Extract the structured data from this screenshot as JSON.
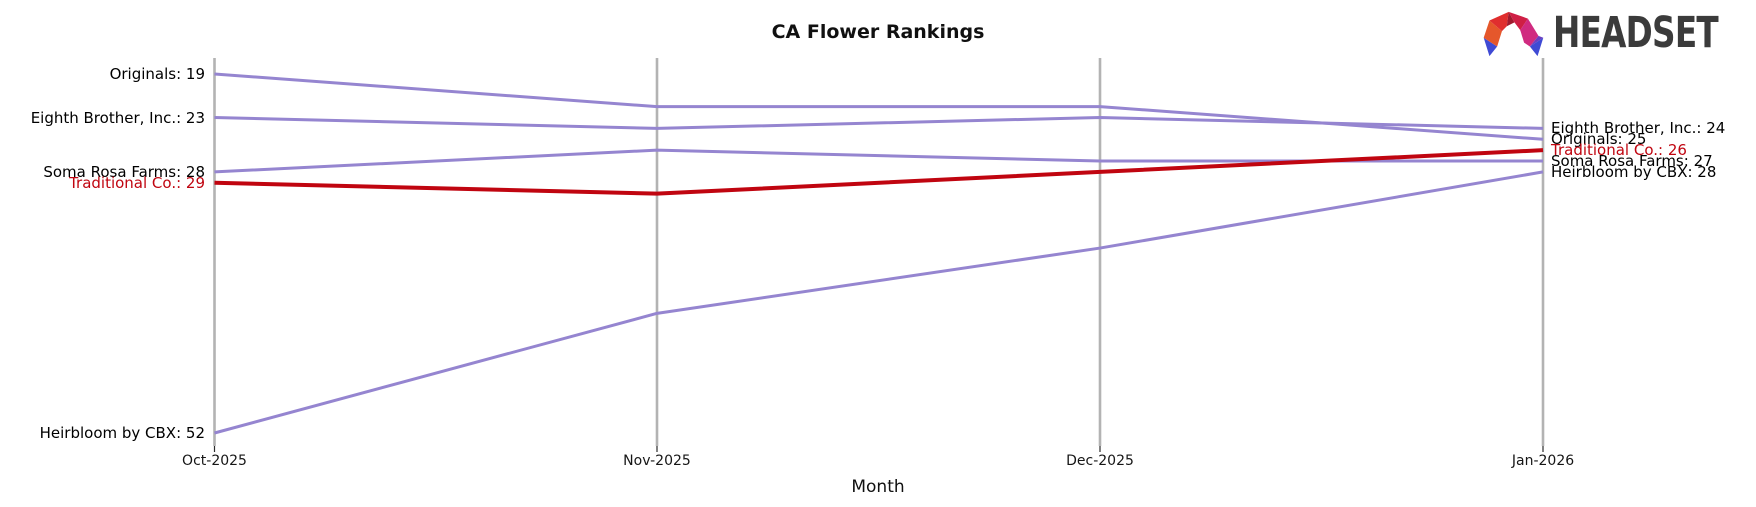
{
  "title": "CA Flower Rankings",
  "xlabel": "Month",
  "logo": {
    "text": "HEADSET"
  },
  "colors": {
    "line_default": "#9585d0",
    "line_emphasis": "#c00510",
    "axis": "#b3b3b3",
    "tick": "#2a2a2a",
    "text": "#101010",
    "label_emphasis": "#c00510"
  },
  "chart_data": {
    "type": "line",
    "variant": "bump-ranking",
    "title": "CA Flower Rankings",
    "xlabel": "Month",
    "x": [
      "Oct-2025",
      "Nov-2025",
      "Dec-2025",
      "Jan-2026"
    ],
    "y_meaning": "rank (lower is better, plotted top = better rank)",
    "ylim": [
      19,
      52
    ],
    "grid": "vertical-axis-lines-only",
    "legend_position": "inline-edge-labels",
    "series": [
      {
        "name": "Originals",
        "values": [
          19,
          22,
          22,
          25
        ],
        "emphasis": false,
        "left_label": "Originals: 19",
        "right_label": "Originals: 25"
      },
      {
        "name": "Eighth Brother, Inc.",
        "values": [
          23,
          24,
          23,
          24
        ],
        "emphasis": false,
        "left_label": "Eighth Brother, Inc.: 23",
        "right_label": "Eighth Brother, Inc.: 24"
      },
      {
        "name": "Soma Rosa Farms",
        "values": [
          28,
          26,
          27,
          27
        ],
        "emphasis": false,
        "left_label": "Soma Rosa Farms: 28",
        "right_label": "Soma Rosa Farms: 27"
      },
      {
        "name": "Heirbloom by CBX",
        "values": [
          52,
          41,
          35,
          28
        ],
        "emphasis": false,
        "left_label": "Heirbloom by CBX: 52",
        "right_label": "Heirbloom by CBX: 28"
      },
      {
        "name": "Traditional Co.",
        "values": [
          29,
          30,
          28,
          26
        ],
        "emphasis": true,
        "left_label": "Traditional Co.: 29",
        "right_label": "Traditional Co.: 26"
      }
    ]
  }
}
